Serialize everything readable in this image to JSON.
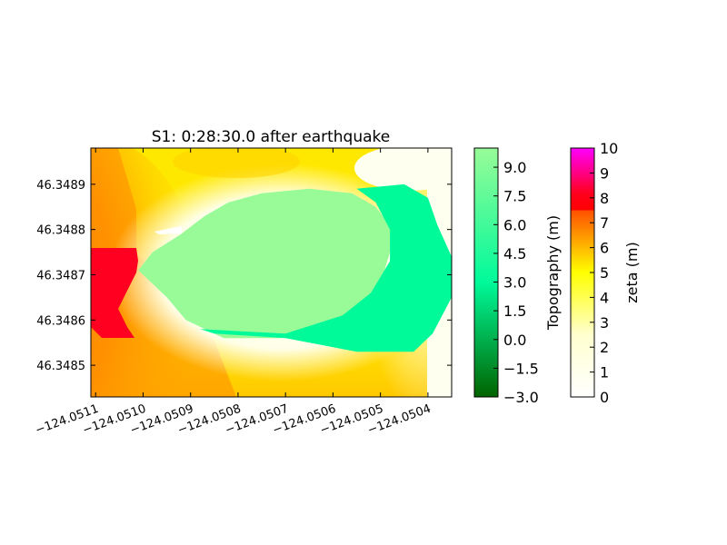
{
  "chart_data": [
    {
      "type": "heatmap",
      "title": "S1: 0:28:30.0 after earthquake",
      "xlabel": "",
      "ylabel": "",
      "x_ticks": [
        -124.0511,
        -124.051,
        -124.0509,
        -124.0508,
        -124.0507,
        -124.0506,
        -124.0505,
        -124.0504
      ],
      "x_tick_labels": [
        "−124.0511",
        "−124.0510",
        "−124.0509",
        "−124.0508",
        "−124.0507",
        "−124.0506",
        "−124.0505",
        "−124.0504"
      ],
      "xlim": [
        -124.05111,
        -124.05035
      ],
      "y_ticks": [
        46.3489,
        46.3488,
        46.3487,
        46.3486,
        46.3485
      ],
      "y_tick_labels": [
        "46.3489",
        "46.3488",
        "46.3487",
        "46.3486",
        "46.3485"
      ],
      "ylim": [
        46.34843,
        46.34898
      ],
      "grid": false,
      "regions": [
        {
          "name": "building-upper",
          "fill": "#98fb98",
          "points": [
            [
              -124.05101,
              46.34871
            ],
            [
              -124.05098,
              46.34875
            ],
            [
              -124.05092,
              46.34879
            ],
            [
              -124.05087,
              46.34883
            ],
            [
              -124.05082,
              46.34886
            ],
            [
              -124.05075,
              46.34888
            ],
            [
              -124.05065,
              46.34889
            ],
            [
              -124.05056,
              46.34888
            ],
            [
              -124.05051,
              46.34885
            ],
            [
              -124.05048,
              46.34881
            ],
            [
              -124.05048,
              46.34875
            ],
            [
              -124.0505,
              46.34868
            ],
            [
              -124.05055,
              46.34862
            ],
            [
              -124.05062,
              46.34858
            ],
            [
              -124.05071,
              46.34856
            ],
            [
              -124.05083,
              46.34856
            ],
            [
              -124.05091,
              46.3486
            ],
            [
              -124.05095,
              46.34865
            ],
            [
              -124.05101,
              46.34871
            ]
          ]
        },
        {
          "name": "building-right",
          "fill": "#00fa9a",
          "points": [
            [
              -124.05055,
              46.34889
            ],
            [
              -124.05045,
              46.3489
            ],
            [
              -124.0504,
              46.34887
            ],
            [
              -124.05038,
              46.34881
            ],
            [
              -124.05035,
              46.34874
            ],
            [
              -124.05034,
              46.34867
            ],
            [
              -124.05037,
              46.34861
            ],
            [
              -124.05039,
              46.34857
            ],
            [
              -124.05043,
              46.34853
            ],
            [
              -124.05055,
              46.34853
            ],
            [
              -124.0507,
              46.34856
            ],
            [
              -124.05085,
              46.34857
            ],
            [
              -124.05088,
              46.34858
            ],
            [
              -124.0507,
              46.34857
            ],
            [
              -124.05058,
              46.34861
            ],
            [
              -124.05052,
              46.34866
            ],
            [
              -124.05048,
              46.34873
            ],
            [
              -124.05048,
              46.3488
            ],
            [
              -124.05051,
              46.34886
            ],
            [
              -124.05055,
              46.34889
            ]
          ]
        }
      ],
      "colorbars": [
        {
          "label": "Topography (m)",
          "range": [
            -3.0,
            10.0
          ],
          "ticks": [
            9.0,
            7.5,
            6.0,
            4.5,
            3.0,
            1.5,
            0.0,
            -1.5,
            -3.0
          ],
          "tick_labels": [
            "9.0",
            "7.5",
            "6.0",
            "4.5",
            "3.0",
            "1.5",
            "0.0",
            "−1.5",
            "−3.0"
          ],
          "stops": [
            {
              "v": -3.0,
              "c": "#006400"
            },
            {
              "v": 3.0,
              "c": "#00fa9a"
            },
            {
              "v": 10.0,
              "c": "#98fb98"
            }
          ]
        },
        {
          "label": "zeta (m)",
          "range": [
            0,
            10
          ],
          "ticks": [
            10,
            9,
            8,
            7,
            6,
            5,
            4,
            3,
            2,
            1,
            0
          ],
          "tick_labels": [
            "10",
            "9",
            "8",
            "7",
            "6",
            "5",
            "4",
            "3",
            "2",
            "1",
            "0"
          ],
          "stops": [
            {
              "v": 0,
              "c": "#ffffff"
            },
            {
              "v": 2.5,
              "c": "#ffffd0"
            },
            {
              "v": 5,
              "c": "#ffff00"
            },
            {
              "v": 7.5,
              "c": "#ff5000"
            },
            {
              "v": 7.51,
              "c": "#ff0000"
            },
            {
              "v": 8.2,
              "c": "#ff0020"
            },
            {
              "v": 10,
              "c": "#ff00ff"
            }
          ]
        }
      ]
    }
  ]
}
